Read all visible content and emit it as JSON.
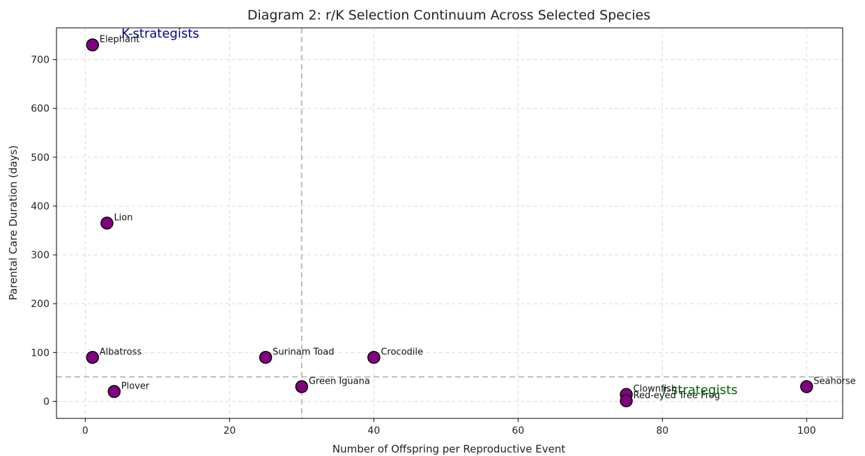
{
  "chart_data": {
    "type": "scatter",
    "title": "Diagram 2: r/K Selection Continuum Across Selected Species",
    "xlabel": "Number of Offspring per Reproductive Event",
    "ylabel": "Parental Care Duration (days)",
    "xlim": [
      -4,
      105
    ],
    "ylim": [
      -35,
      765
    ],
    "xticks": [
      0,
      20,
      40,
      60,
      80,
      100
    ],
    "yticks": [
      0,
      100,
      200,
      300,
      400,
      500,
      600,
      700
    ],
    "grid": true,
    "marker_color": "#800080",
    "marker_edge_color": "#000000",
    "reference_lines": {
      "x": 30,
      "y": 50,
      "color": "#bbbbbb"
    },
    "points": [
      {
        "label": "Elephant",
        "x": 1,
        "y": 730
      },
      {
        "label": "Lion",
        "x": 3,
        "y": 365
      },
      {
        "label": "Albatross",
        "x": 1,
        "y": 90
      },
      {
        "label": "Plover",
        "x": 4,
        "y": 20
      },
      {
        "label": "Surinam Toad",
        "x": 25,
        "y": 90
      },
      {
        "label": "Green Iguana",
        "x": 30,
        "y": 30
      },
      {
        "label": "Crocodile",
        "x": 40,
        "y": 90
      },
      {
        "label": "Clownfish",
        "x": 75,
        "y": 14
      },
      {
        "label": "Red-eyed Tree Frog",
        "x": 75,
        "y": 1
      },
      {
        "label": "Seahorse",
        "x": 100,
        "y": 30
      }
    ],
    "annotations": [
      {
        "text": "K-strategists",
        "x": 5,
        "y": 745,
        "color": "#00008b"
      },
      {
        "text": "r-strategists",
        "x": 80,
        "y": 15,
        "color": "#006400"
      }
    ]
  }
}
